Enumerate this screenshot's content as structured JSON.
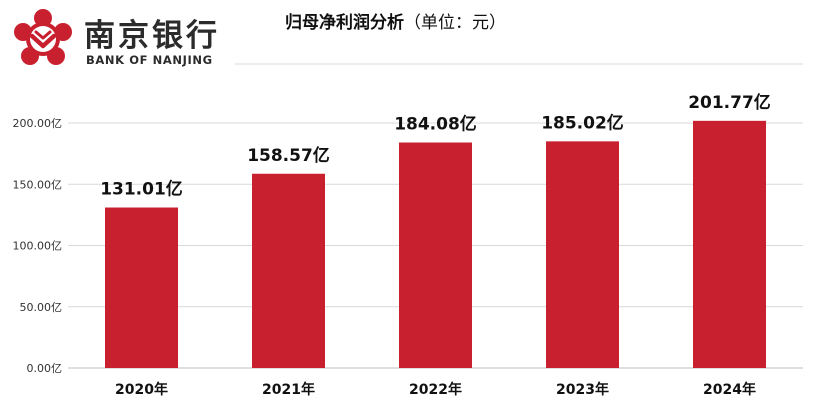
{
  "logo": {
    "name_cn": "南京银行",
    "name_en": "BANK OF NANJING",
    "icon": "bank-of-nanjing-logo-icon"
  },
  "colors": {
    "bar": "#c8202f",
    "grid": "#d9d9d9",
    "logo_red": "#c8202f",
    "text": "#111111"
  },
  "chart_data": {
    "type": "bar",
    "title": "归母净利润分析",
    "subtitle": "（单位：元）",
    "categories": [
      "2020年",
      "2021年",
      "2022年",
      "2023年",
      "2024年"
    ],
    "values": [
      131.01,
      158.57,
      184.08,
      185.02,
      201.77
    ],
    "value_labels": [
      "131.01亿",
      "158.57亿",
      "184.08亿",
      "185.02亿",
      "201.77亿"
    ],
    "ylim": [
      0,
      200
    ],
    "yticks": [
      0,
      50,
      100,
      150,
      200
    ],
    "ytick_labels": [
      "0.00亿",
      "50.00亿",
      "100.00亿",
      "150.00亿",
      "200.00亿"
    ],
    "grid": true,
    "legend": "none"
  }
}
